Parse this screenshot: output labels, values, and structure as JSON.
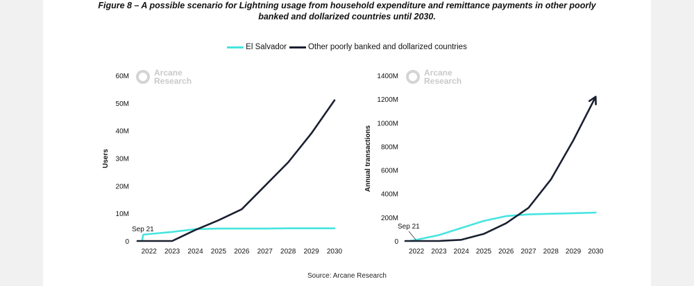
{
  "figure": {
    "title_line1": "Figure 8 – A possible scenario for Lightning usage from household expenditure and remittance payments in other poorly",
    "title_line2": "banked and dollarized countries until 2030.",
    "source": "Source: Arcane Research"
  },
  "legend": [
    {
      "label": "El Salvador",
      "color": "#46e5e0"
    },
    {
      "label": "Other poorly banked and dollarized countries",
      "color": "#1a2030"
    }
  ],
  "watermark": {
    "line1": "Arcane",
    "line2": "Research"
  },
  "chart_data": [
    {
      "type": "line",
      "title": "",
      "xlabel": "",
      "ylabel": "Users",
      "x_ticks": [
        "2022",
        "2023",
        "2024",
        "2025",
        "2026",
        "2027",
        "2028",
        "2029",
        "2030"
      ],
      "y_ticks": [
        "0",
        "10M",
        "20M",
        "30M",
        "40M",
        "50M",
        "60M"
      ],
      "xlim": [
        2021.5,
        2030.3
      ],
      "ylim": [
        0,
        60000000
      ],
      "annotation": "Sep 21",
      "series": [
        {
          "name": "El Salvador",
          "color": "#46e5e0",
          "x": [
            2021.7,
            2021.75,
            2022,
            2023,
            2024,
            2025,
            2026,
            2027,
            2028,
            2029,
            2030
          ],
          "y": [
            0,
            2300000,
            2500000,
            3300000,
            4300000,
            4500000,
            4500000,
            4500000,
            4600000,
            4600000,
            4600000
          ]
        },
        {
          "name": "Other poorly banked and dollarized countries",
          "color": "#1a2030",
          "x": [
            2021.5,
            2022,
            2023,
            2024,
            2025,
            2026,
            2027,
            2028,
            2029,
            2030
          ],
          "y": [
            0,
            0,
            0,
            4000000,
            7500000,
            11500000,
            20000000,
            28500000,
            39000000,
            51000000
          ]
        }
      ]
    },
    {
      "type": "line",
      "title": "",
      "xlabel": "",
      "ylabel": "Annual transactions",
      "x_ticks": [
        "2022",
        "2023",
        "2024",
        "2025",
        "2026",
        "2027",
        "2028",
        "2029",
        "2030"
      ],
      "y_ticks": [
        "0",
        "200M",
        "400M",
        "600M",
        "800M",
        "1000M",
        "1200M",
        "1400M"
      ],
      "xlim": [
        2021.5,
        2030.3
      ],
      "ylim": [
        0,
        1400000000
      ],
      "annotation": "Sep 21",
      "series": [
        {
          "name": "El Salvador",
          "color": "#46e5e0",
          "x": [
            2021.7,
            2022,
            2023,
            2024,
            2025,
            2026,
            2027,
            2028,
            2029,
            2030
          ],
          "y": [
            0,
            10000000,
            50000000,
            110000000,
            170000000,
            210000000,
            225000000,
            230000000,
            235000000,
            240000000
          ]
        },
        {
          "name": "Other poorly banked and dollarized countries",
          "color": "#1a2030",
          "x": [
            2021.5,
            2022,
            2023,
            2024,
            2025,
            2026,
            2027,
            2028,
            2029,
            2030
          ],
          "y": [
            0,
            0,
            0,
            10000000,
            60000000,
            150000000,
            280000000,
            520000000,
            850000000,
            1220000000
          ]
        }
      ]
    }
  ]
}
